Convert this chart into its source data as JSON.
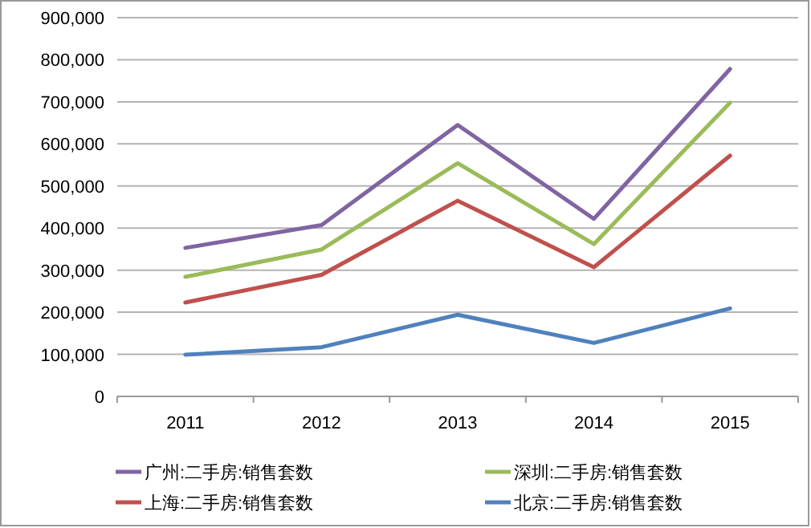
{
  "chart_data": {
    "type": "line",
    "categories": [
      "2011",
      "2012",
      "2013",
      "2014",
      "2015"
    ],
    "ylim": [
      0,
      900000
    ],
    "yticks": [
      {
        "value": 0,
        "label": "0"
      },
      {
        "value": 100000,
        "label": "100,000"
      },
      {
        "value": 200000,
        "label": "200,000"
      },
      {
        "value": 300000,
        "label": "300,000"
      },
      {
        "value": 400000,
        "label": "400,000"
      },
      {
        "value": 500000,
        "label": "500,000"
      },
      {
        "value": 600000,
        "label": "600,000"
      },
      {
        "value": 700000,
        "label": "700,000"
      },
      {
        "value": 800000,
        "label": "800,000"
      },
      {
        "value": 900000,
        "label": "900,000"
      }
    ],
    "grid": "y",
    "legend": "bottom",
    "marker": "none",
    "line_style": "solid",
    "series": [
      {
        "name": "广州:二手房:销售套数",
        "color": "#8064a2",
        "values": [
          353000,
          407000,
          645000,
          422000,
          778000
        ]
      },
      {
        "name": "深圳:二手房:销售套数",
        "color": "#9bbb59",
        "values": [
          284000,
          349000,
          554000,
          362000,
          698000
        ]
      },
      {
        "name": "上海:二手房:销售套数",
        "color": "#c0504d",
        "values": [
          223000,
          289000,
          465000,
          307000,
          572000
        ]
      },
      {
        "name": "北京:二手房:销售套数",
        "color": "#4f81bd",
        "values": [
          99000,
          117000,
          194000,
          127000,
          209000
        ]
      }
    ]
  }
}
